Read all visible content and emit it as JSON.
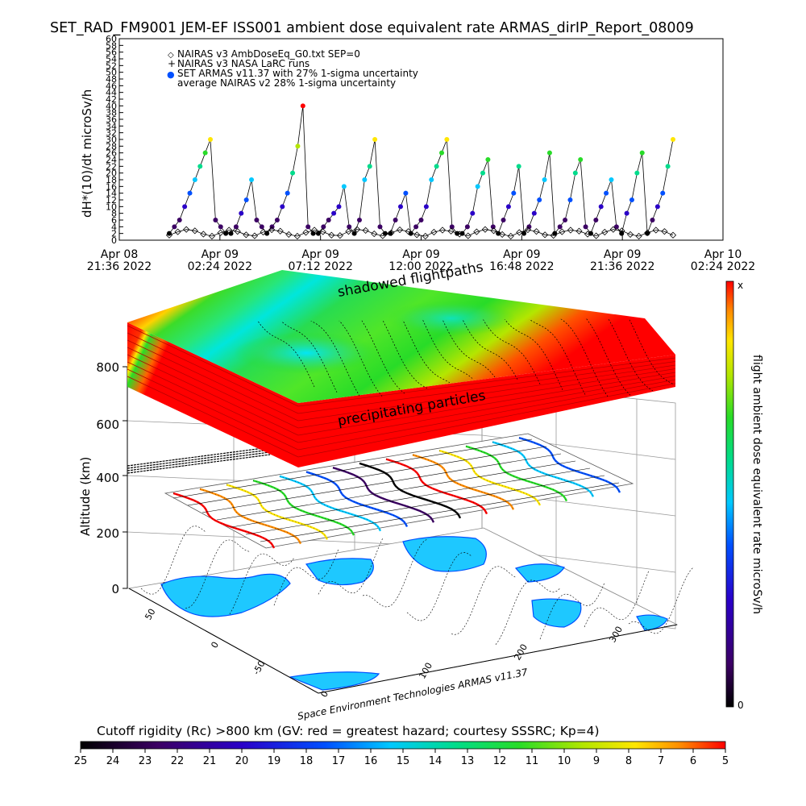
{
  "title": "SET_RAD_FM9001  JEM-EF ISS001 ambient dose equivalent rate ARMAS_dirIP_Report_08009",
  "chart_data": [
    {
      "type": "scatter",
      "ylabel": "dH*(10)/dt microSv/h",
      "ylim": [
        0,
        60
      ],
      "y_ticks": [
        "0",
        "2",
        "4",
        "6",
        "8",
        "10",
        "12",
        "14",
        "16",
        "18",
        "20",
        "22",
        "24",
        "26",
        "28",
        "30",
        "32",
        "34",
        "36",
        "38",
        "40",
        "42",
        "44",
        "46",
        "48",
        "50",
        "52",
        "54",
        "56",
        "58",
        "60"
      ],
      "x_ticks": [
        {
          "l1": "Apr 08",
          "l2": "21:36 2022"
        },
        {
          "l1": "Apr 09",
          "l2": "02:24 2022"
        },
        {
          "l1": "Apr 09",
          "l2": "07:12 2022"
        },
        {
          "l1": "Apr 09",
          "l2": "12:00 2022"
        },
        {
          "l1": "Apr 09",
          "l2": "16:48 2022"
        },
        {
          "l1": "Apr 09",
          "l2": "21:36 2022"
        },
        {
          "l1": "Apr 10",
          "l2": "02:24 2022"
        }
      ],
      "legend": [
        {
          "marker": "◇",
          "text": "NAIRAS v3 AmbDoseEq_G0.txt SEP=0"
        },
        {
          "marker": "+",
          "text": "NAIRAS v3 NASA LaRC runs"
        },
        {
          "marker": "●",
          "text": "SET ARMAS v11.37 with 27% 1-sigma uncertainty"
        },
        {
          "marker": "",
          "text": "average NAIRAS v2 28% 1-sigma uncertainty"
        }
      ],
      "series": [
        {
          "name": "SET ARMAS v11.37",
          "values": [
            2,
            4,
            6,
            10,
            14,
            18,
            22,
            26,
            30,
            6,
            4,
            2,
            2,
            4,
            8,
            12,
            18,
            6,
            4,
            2,
            4,
            6,
            10,
            14,
            20,
            28,
            40,
            4,
            2,
            2,
            4,
            6,
            8,
            10,
            16,
            4,
            2,
            6,
            18,
            22,
            30,
            4,
            2,
            2,
            6,
            10,
            14,
            2,
            4,
            6,
            10,
            18,
            22,
            26,
            30,
            4,
            2,
            2,
            4,
            8,
            16,
            20,
            24,
            4,
            2,
            6,
            10,
            14,
            22,
            2,
            4,
            8,
            12,
            18,
            26,
            2,
            4,
            6,
            12,
            20,
            24,
            4,
            2,
            6,
            10,
            14,
            18,
            4,
            2,
            8,
            12,
            20,
            26,
            2,
            6,
            10,
            14,
            22,
            30
          ]
        },
        {
          "name": "NAIRAS v3 AmbDoseEq",
          "values": [
            1.5,
            2.5,
            3.2,
            2.8,
            1.8,
            1.2,
            2.2,
            3.0,
            2.6,
            1.6,
            1.3,
            2.4,
            3.1,
            2.7,
            1.7,
            1.2,
            2.3,
            3.0,
            2.5,
            1.5,
            1.4,
            2.6,
            3.2,
            2.9,
            1.9,
            1.3,
            2.2,
            3.1,
            2.6,
            1.6,
            1.2,
            2.4,
            3.0,
            2.7,
            1.8,
            1.3,
            2.5,
            3.2,
            2.8,
            1.7,
            1.2,
            2.3,
            3.1,
            2.6,
            1.6,
            1.4,
            2.5,
            3.0,
            2.7,
            1.8,
            1.3,
            2.4,
            3.2,
            2.8,
            1.7,
            1.2,
            2.2,
            3.0,
            2.6,
            1.5
          ]
        }
      ]
    },
    {
      "type": "heatmap",
      "zlabel": "Altitude (km)",
      "z_ticks": [
        "0",
        "200",
        "400",
        "600",
        "800"
      ],
      "lon_ticks": [
        "0",
        "100",
        "200",
        "300"
      ],
      "lat_ticks": [
        "-50",
        "0",
        "50"
      ],
      "annotations": [
        "shadowed flightpaths",
        "precipitating particles"
      ],
      "colorbar_title": "flight ambient dose equivalent rate microSv/h",
      "colorbar_top": "x",
      "colorbar_bottom": "0",
      "credit": "Space Environment Technologies ARMAS v11.37"
    },
    {
      "type": "heatmap",
      "title": "Cutoff rigidity (Rc) >800 km (GV: red = greatest hazard; courtesy SSSRC; Kp=4)",
      "colorbar_ticks": [
        "25",
        "24",
        "23",
        "22",
        "21",
        "20",
        "19",
        "18",
        "17",
        "16",
        "15",
        "14",
        "13",
        "12",
        "11",
        "10",
        "9",
        "8",
        "7",
        "6",
        "5"
      ]
    }
  ],
  "colors": {
    "rainbow": [
      "#000000",
      "#3c0064",
      "#2a00c8",
      "#0050ff",
      "#00c8ff",
      "#00dc8c",
      "#28dc28",
      "#b4e600",
      "#ffe600",
      "#ff8c00",
      "#ff0000"
    ]
  }
}
